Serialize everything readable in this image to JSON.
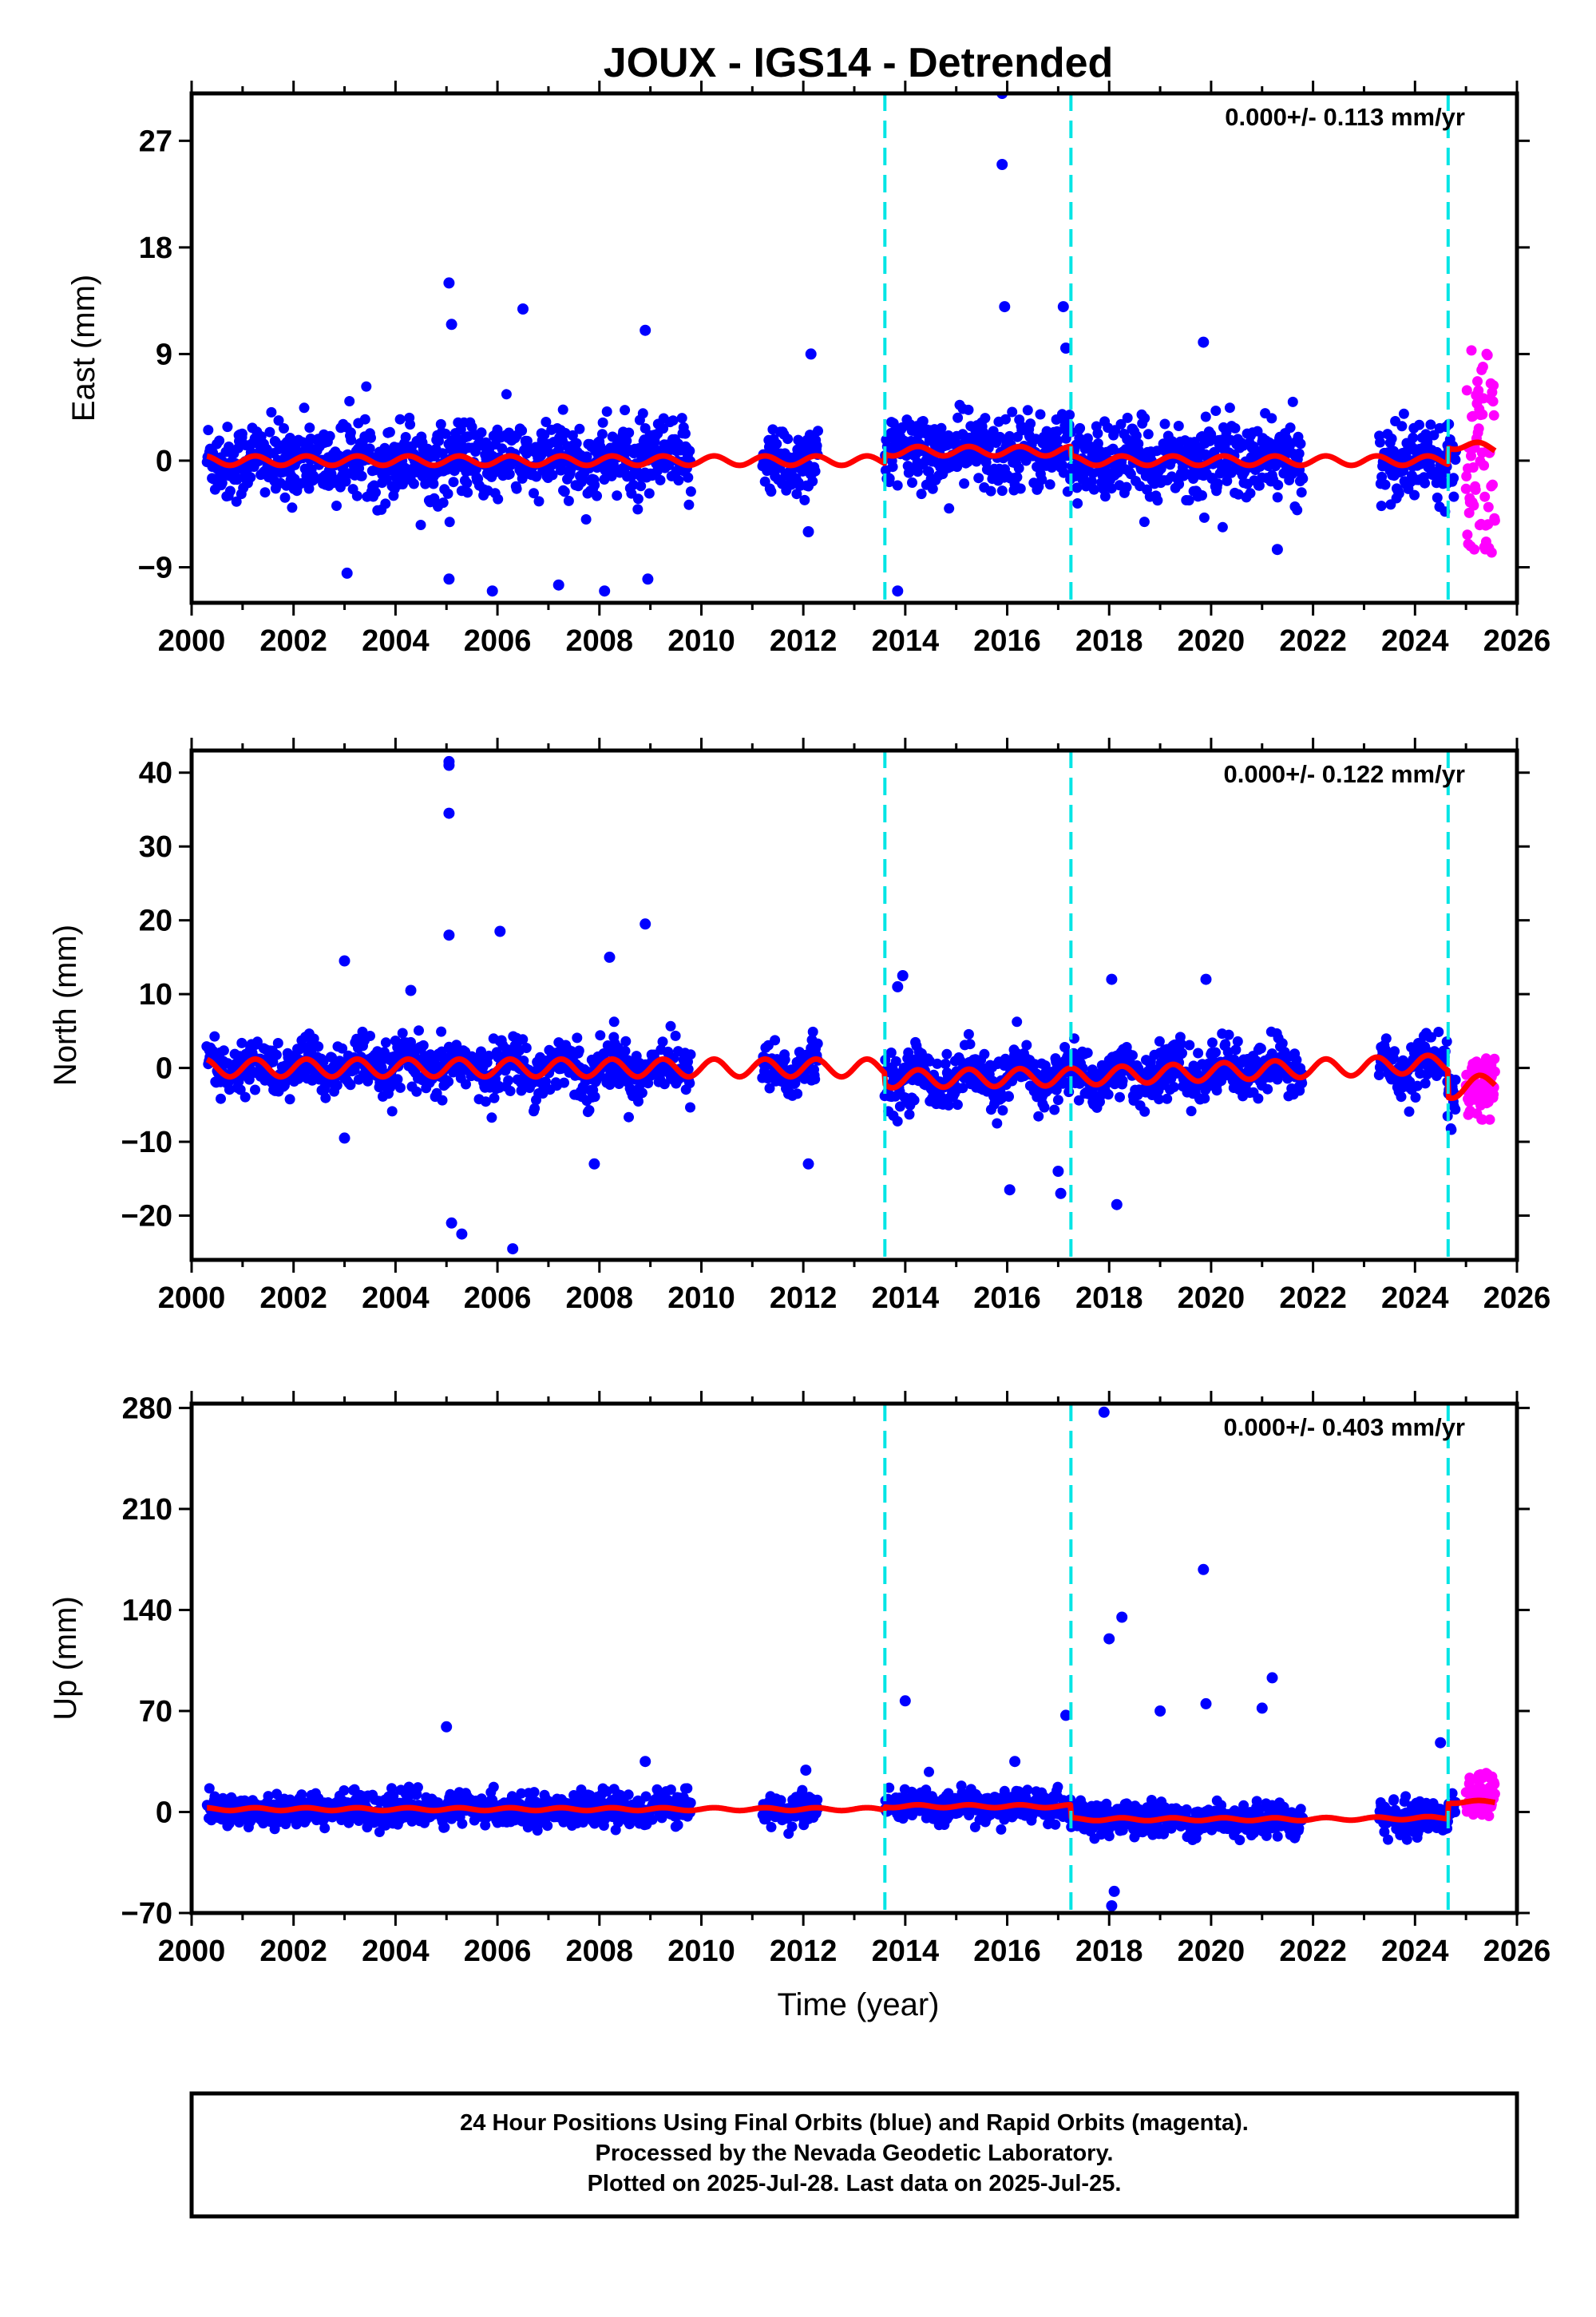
{
  "title": "JOUX - IGS14 - Detrended",
  "xlabel": "Time (year)",
  "caption": [
    "24 Hour Positions Using Final Orbits (blue) and Rapid Orbits (magenta).",
    "Processed by the Nevada Geodetic Laboratory.",
    "Plotted on 2025-Jul-28. Last data on 2025-Jul-25."
  ],
  "colors": {
    "final": "#0000ff",
    "rapid": "#ff00ff",
    "model": "#ff0000",
    "events": "#00e5e5"
  },
  "chart_data": [
    {
      "type": "scatter",
      "ylabel": "East (mm)",
      "rate_text": "0.000+/- 0.113 mm/yr",
      "xlim": [
        2000,
        2026
      ],
      "ylim": [
        -12,
        31
      ],
      "xticks": [
        2000,
        2002,
        2004,
        2006,
        2008,
        2010,
        2012,
        2014,
        2016,
        2018,
        2020,
        2022,
        2024,
        2026
      ],
      "yticks": [
        -9,
        0,
        9,
        18,
        27
      ],
      "ytick_labels": [
        "−9",
        "0",
        "9",
        "18",
        "27"
      ],
      "events": [
        2013.6,
        2017.25,
        2024.65
      ],
      "final_segments": [
        [
          2000.3,
          2009.8
        ],
        [
          2011.2,
          2012.3
        ],
        [
          2013.6,
          2021.8
        ],
        [
          2023.3,
          2024.8
        ]
      ],
      "rapid_range": [
        2025.0,
        2025.57
      ],
      "series": [
        {
          "name": "Final Orbits (blue)",
          "spread_sd": 1.6,
          "outliers": [
            [
              2005.05,
              15.0
            ],
            [
              2005.1,
              11.5
            ],
            [
              2006.5,
              12.8
            ],
            [
              2012.15,
              9.0
            ],
            [
              2008.9,
              11.0
            ],
            [
              2015.9,
              31.0
            ],
            [
              2015.9,
              25.0
            ],
            [
              2015.95,
              13.0
            ],
            [
              2017.1,
              13.0
            ],
            [
              2017.15,
              9.5
            ],
            [
              2019.85,
              10.0
            ],
            [
              2003.05,
              -9.5
            ],
            [
              2005.9,
              -11.0
            ],
            [
              2007.2,
              -10.5
            ],
            [
              2008.1,
              -11.0
            ],
            [
              2008.95,
              -10.0
            ],
            [
              2013.85,
              -11.0
            ],
            [
              2012.1,
              -6.0
            ],
            [
              2021.3,
              -7.5
            ],
            [
              2005.05,
              -10.0
            ]
          ]
        },
        {
          "name": "Rapid Orbits (magenta)",
          "range": [
            -8,
            9.5
          ]
        }
      ],
      "model": [
        [
          2000.3,
          0.0
        ],
        [
          2013.59,
          0.0
        ],
        [
          2013.61,
          0.8
        ],
        [
          2017.24,
          0.8
        ],
        [
          2017.26,
          0.0
        ],
        [
          2024.64,
          0.0
        ],
        [
          2024.66,
          1.4
        ],
        [
          2025.57,
          1.0
        ]
      ],
      "model_wiggle": 0.4
    },
    {
      "type": "scatter",
      "ylabel": "North (mm)",
      "rate_text": "0.000+/- 0.122 mm/yr",
      "xlim": [
        2000,
        2026
      ],
      "ylim": [
        -26,
        43
      ],
      "xticks": [
        2000,
        2002,
        2004,
        2006,
        2008,
        2010,
        2012,
        2014,
        2016,
        2018,
        2020,
        2022,
        2024,
        2026
      ],
      "yticks": [
        -20,
        -10,
        0,
        10,
        20,
        30,
        40
      ],
      "ytick_labels": [
        "−20",
        "−10",
        "0",
        "10",
        "20",
        "30",
        "40"
      ],
      "events": [
        2013.6,
        2017.25,
        2024.65
      ],
      "final_segments": [
        [
          2000.3,
          2009.8
        ],
        [
          2011.2,
          2012.3
        ],
        [
          2013.6,
          2021.8
        ],
        [
          2023.3,
          2024.8
        ]
      ],
      "rapid_range": [
        2025.0,
        2025.57
      ],
      "series": [
        {
          "name": "Final Orbits (blue)",
          "spread_sd": 1.8,
          "outliers": [
            [
              2005.05,
              41.5
            ],
            [
              2005.05,
              41.0
            ],
            [
              2005.05,
              34.5
            ],
            [
              2005.05,
              18.0
            ],
            [
              2006.05,
              18.5
            ],
            [
              2008.9,
              19.5
            ],
            [
              2003.0,
              14.5
            ],
            [
              2008.2,
              15.0
            ],
            [
              2004.3,
              10.5
            ],
            [
              2018.05,
              12.0
            ],
            [
              2019.9,
              12.0
            ],
            [
              2013.95,
              12.5
            ],
            [
              2013.85,
              11.0
            ],
            [
              2005.1,
              -21.0
            ],
            [
              2005.3,
              -22.5
            ],
            [
              2006.3,
              -24.5
            ],
            [
              2007.9,
              -13.0
            ],
            [
              2012.1,
              -13.0
            ],
            [
              2016.05,
              -16.5
            ],
            [
              2017.05,
              -17.0
            ],
            [
              2018.15,
              -18.5
            ],
            [
              2017.0,
              -14.0
            ],
            [
              2003.0,
              -9.5
            ]
          ]
        },
        {
          "name": "Rapid Orbits (magenta)",
          "range": [
            -7,
            1.5
          ]
        }
      ],
      "model": [
        [
          2000.3,
          0.0
        ],
        [
          2013.59,
          0.0
        ],
        [
          2013.61,
          -1.5
        ],
        [
          2017.24,
          -1.2
        ],
        [
          2024.64,
          0.6
        ],
        [
          2024.66,
          -3.0
        ],
        [
          2025.57,
          -1.8
        ]
      ],
      "model_wiggle": 1.2
    },
    {
      "type": "scatter",
      "ylabel": "Up (mm)",
      "rate_text": "0.000+/- 0.403 mm/yr",
      "xlim": [
        2000,
        2026
      ],
      "ylim": [
        -70,
        283
      ],
      "xticks": [
        2000,
        2002,
        2004,
        2006,
        2008,
        2010,
        2012,
        2014,
        2016,
        2018,
        2020,
        2022,
        2024,
        2026
      ],
      "yticks": [
        -70,
        0,
        70,
        140,
        210,
        280
      ],
      "ytick_labels": [
        "−70",
        "0",
        "70",
        "140",
        "210",
        "280"
      ],
      "events": [
        2013.6,
        2017.25,
        2024.65
      ],
      "final_segments": [
        [
          2000.3,
          2009.8
        ],
        [
          2011.2,
          2012.3
        ],
        [
          2013.6,
          2021.8
        ],
        [
          2023.3,
          2024.8
        ]
      ],
      "rapid_range": [
        2025.0,
        2025.57
      ],
      "series": [
        {
          "name": "Final Orbits (blue)",
          "spread_sd": 5.5,
          "outliers": [
            [
              2017.9,
              277.0
            ],
            [
              2019.85,
              168.0
            ],
            [
              2018.25,
              135.0
            ],
            [
              2018.0,
              120.0
            ],
            [
              2021.2,
              93.0
            ],
            [
              2014.0,
              77.0
            ],
            [
              2019.9,
              75.0
            ],
            [
              2019.0,
              70.0
            ],
            [
              2021.0,
              72.0
            ],
            [
              2017.15,
              67.0
            ],
            [
              2005.0,
              59.0
            ],
            [
              2018.1,
              -55.0
            ],
            [
              2018.05,
              -65.0
            ],
            [
              2008.9,
              35.0
            ],
            [
              2024.5,
              48.0
            ],
            [
              2016.15,
              35.0
            ],
            [
              2012.05,
              29.0
            ]
          ]
        },
        {
          "name": "Rapid Orbits (magenta)",
          "range": [
            -3,
            27
          ]
        }
      ],
      "model": [
        [
          2000.3,
          2.0
        ],
        [
          2013.59,
          2.0
        ],
        [
          2013.61,
          4.0
        ],
        [
          2017.24,
          4.0
        ],
        [
          2017.26,
          -5.0
        ],
        [
          2021.8,
          -5.0
        ],
        [
          2024.64,
          -4.0
        ],
        [
          2024.66,
          7.0
        ],
        [
          2025.57,
          7.0
        ]
      ],
      "model_wiggle": 1.0
    }
  ]
}
